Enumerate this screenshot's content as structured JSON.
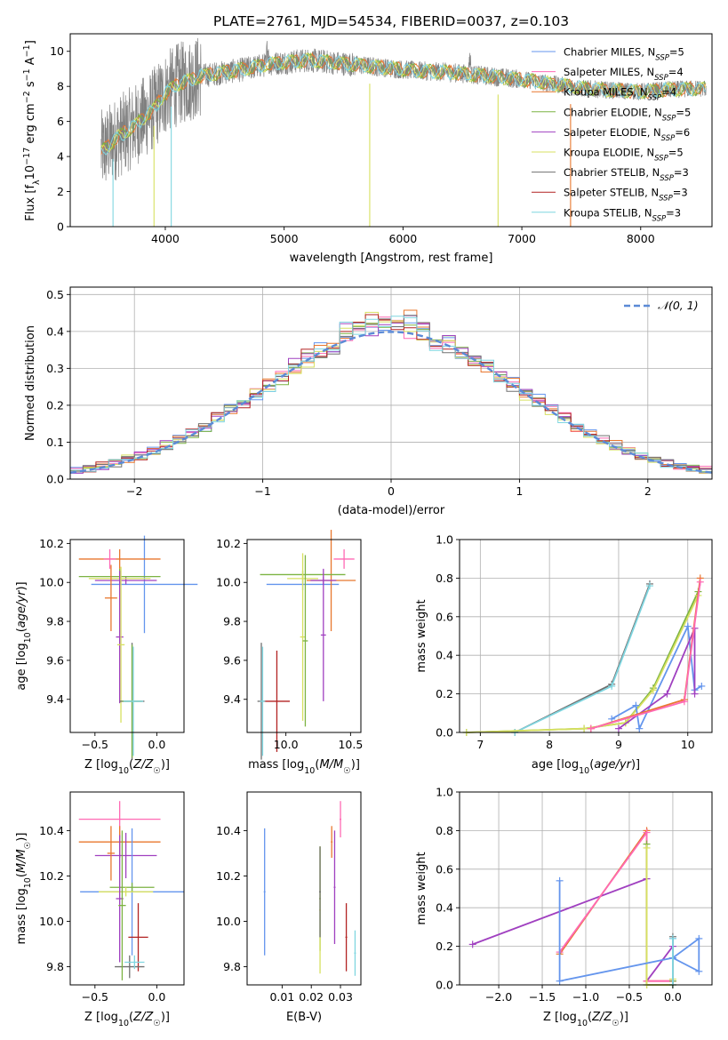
{
  "figure_title": "PLATE=2761, MJD=54534, FIBERID=0037, z=0.103",
  "model_colors": [
    "#6495ed",
    "#ff69b4",
    "#e8772e",
    "#7cb342",
    "#a040c0",
    "#d7e060",
    "#707070",
    "#b22222",
    "#7fd6e0"
  ],
  "chart_data": [
    {
      "id": "spectrum",
      "type": "line",
      "title": "PLATE=2761, MJD=54534, FIBERID=0037, z=0.103",
      "xlabel": "wavelength [Angstrom, rest frame]",
      "ylabel": "Flux [f_λ 10^-17 erg cm^-2 s^-1 A^-1]",
      "xlim": [
        3200,
        8600
      ],
      "ylim": [
        0,
        11
      ],
      "xticks": [
        "4000",
        "5000",
        "6000",
        "7000",
        "8000"
      ],
      "yticks": [
        "0",
        "2",
        "4",
        "6",
        "8",
        "10"
      ],
      "legend_position": "right",
      "legend": [
        {
          "label": "Chabrier MILES, N",
          "sub": "SSP",
          "tail": "=5",
          "color_index": 0
        },
        {
          "label": "Salpeter MILES, N",
          "sub": "SSP",
          "tail": "=4",
          "color_index": 1
        },
        {
          "label": "Kroupa MILES, N",
          "sub": "SSP",
          "tail": "=4",
          "color_index": 2
        },
        {
          "label": "Chabrier ELODIE, N",
          "sub": "SSP",
          "tail": "=5",
          "color_index": 3
        },
        {
          "label": "Salpeter ELODIE, N",
          "sub": "SSP",
          "tail": "=6",
          "color_index": 4
        },
        {
          "label": "Kroupa ELODIE, N",
          "sub": "SSP",
          "tail": "=5",
          "color_index": 5
        },
        {
          "label": "Chabrier STELIB, N",
          "sub": "SSP",
          "tail": "=3",
          "color_index": 6
        },
        {
          "label": "Salpeter STELIB, N",
          "sub": "SSP",
          "tail": "=3",
          "color_index": 7
        },
        {
          "label": "Kroupa STELIB, N",
          "sub": "SSP",
          "tail": "=3",
          "color_index": 8
        }
      ],
      "continuum_anchors": {
        "wavelength": [
          3450,
          3600,
          3750,
          3900,
          4000,
          4100,
          4300,
          4600,
          4900,
          5200,
          5500,
          5800,
          6100,
          6400,
          6700,
          7000,
          7300,
          7500,
          7700,
          8000,
          8200,
          8550
        ],
        "flux": [
          4.2,
          5.1,
          5.8,
          6.7,
          7.6,
          8.1,
          8.6,
          8.9,
          9.3,
          9.5,
          9.3,
          9.1,
          8.9,
          8.8,
          8.6,
          8.4,
          8.1,
          7.9,
          7.8,
          7.7,
          7.8,
          7.9
        ]
      },
      "model_dropouts_wavelength": [
        3560,
        3905,
        4050,
        5720,
        6800,
        7410
      ]
    },
    {
      "id": "residuals",
      "type": "bar",
      "xlabel": "(data-model)/error",
      "ylabel": "Normed distribution",
      "xlim": [
        -2.5,
        2.5
      ],
      "ylim": [
        0,
        0.52
      ],
      "xticks": [
        "−2",
        "−1",
        "0",
        "1",
        "2"
      ],
      "yticks": [
        "0.0",
        "0.1",
        "0.2",
        "0.3",
        "0.4",
        "0.5"
      ],
      "legend": [
        {
          "label": "𝒩(0, 1)",
          "style": "dashed",
          "color": "#5b8ad6"
        }
      ],
      "legend_position": "upper right",
      "bin_width": 0.1,
      "histogram": "normal_density_with_scatter",
      "series_count": 9
    },
    {
      "id": "age_vs_Z",
      "type": "scatter",
      "xlabel": "Z [log10(Z/Z☉)]",
      "ylabel": "age [log10(age/yr)]",
      "xlim": [
        -0.7,
        0.22
      ],
      "ylim": [
        9.23,
        10.22
      ],
      "xticks": [
        "−0.5",
        "0.0"
      ],
      "yticks": [
        "9.4",
        "9.6",
        "9.8",
        "10.0",
        "10.2"
      ],
      "points": [
        {
          "c": 0,
          "x": -0.1,
          "xerr": 0.43,
          "y": 9.99,
          "yerr": 0.25
        },
        {
          "c": 2,
          "x": -0.3,
          "xerr": 0.33,
          "y": 10.12,
          "yerr": 0.05
        },
        {
          "c": 4,
          "x": -0.25,
          "xerr": 0.25,
          "y": 10.01,
          "yerr": 0.02
        },
        {
          "c": 3,
          "x": -0.3,
          "xerr": 0.33,
          "y": 10.03,
          "yerr": 0.04
        },
        {
          "c": 5,
          "x": -0.3,
          "xerr": 0.25,
          "y": 10.02,
          "yerr": 0.02
        },
        {
          "c": 1,
          "x": -0.38,
          "xerr": 0.05,
          "y": 10.12,
          "yerr": 0.05
        },
        {
          "c": 2,
          "x": -0.37,
          "xerr": 0.05,
          "y": 9.92,
          "yerr": 0.17
        },
        {
          "c": 4,
          "x": -0.3,
          "xerr": 0.03,
          "y": 9.72,
          "yerr": 0.34
        },
        {
          "c": 5,
          "x": -0.29,
          "xerr": 0.03,
          "y": 9.68,
          "yerr": 0.4
        },
        {
          "c": 6,
          "x": -0.2,
          "xerr": 0.1,
          "y": 9.39,
          "yerr": 0.3
        },
        {
          "c": 3,
          "x": -0.2,
          "xerr": 0.08,
          "y": 9.39,
          "yerr": 0.29
        },
        {
          "c": 8,
          "x": -0.19,
          "xerr": 0.08,
          "y": 9.39,
          "yerr": 0.28
        }
      ]
    },
    {
      "id": "age_vs_mass",
      "type": "scatter",
      "xlabel": "mass [log10(M/M☉)]",
      "ylabel": "",
      "xlim": [
        9.7,
        10.58
      ],
      "ylim": [
        9.23,
        10.22
      ],
      "xticks": [
        "10.0",
        "10.5"
      ],
      "yticks": [
        "9.4",
        "9.6",
        "9.8",
        "10.0",
        "10.2"
      ],
      "points": [
        {
          "c": 0,
          "x": 10.13,
          "xerr": 0.28,
          "y": 9.99,
          "yerr": 0.03
        },
        {
          "c": 1,
          "x": 10.45,
          "xerr": 0.08,
          "y": 10.12,
          "yerr": 0.05
        },
        {
          "c": 2,
          "x": 10.35,
          "xerr": 0.19,
          "y": 10.01,
          "yerr": 0.26
        },
        {
          "c": 3,
          "x": 10.13,
          "xerr": 0.33,
          "y": 10.04,
          "yerr": 0.02
        },
        {
          "c": 4,
          "x": 10.29,
          "xerr": 0.1,
          "y": 10.01,
          "yerr": 0.02
        },
        {
          "c": 5,
          "x": 10.13,
          "xerr": 0.12,
          "y": 10.02,
          "yerr": 0.02
        },
        {
          "c": 4,
          "x": 10.29,
          "xerr": 0.02,
          "y": 9.73,
          "yerr": 0.34
        },
        {
          "c": 5,
          "x": 10.13,
          "xerr": 0.02,
          "y": 9.72,
          "yerr": 0.43
        },
        {
          "c": 6,
          "x": 9.81,
          "xerr": 0.03,
          "y": 9.39,
          "yerr": 0.3
        },
        {
          "c": 7,
          "x": 9.93,
          "xerr": 0.1,
          "y": 9.39,
          "yerr": 0.26
        },
        {
          "c": 8,
          "x": 9.82,
          "xerr": 0.02,
          "y": 9.39,
          "yerr": 0.28
        },
        {
          "c": 3,
          "x": 10.15,
          "xerr": 0.02,
          "y": 9.7,
          "yerr": 0.44
        }
      ]
    },
    {
      "id": "weight_vs_age",
      "type": "line",
      "xlabel": "age [log10(age/yr)]",
      "ylabel": "mass weight",
      "xlim": [
        6.7,
        10.35
      ],
      "ylim": [
        0,
        1
      ],
      "xticks": [
        "7",
        "8",
        "9",
        "10"
      ],
      "yticks": [
        "0.0",
        "0.2",
        "0.4",
        "0.6",
        "0.8",
        "1.0"
      ],
      "series": [
        {
          "c": 6,
          "x": [
            7.5,
            8.9,
            9.45
          ],
          "y": [
            0.0,
            0.25,
            0.77
          ]
        },
        {
          "c": 8,
          "x": [
            7.5,
            8.9,
            9.45
          ],
          "y": [
            0.0,
            0.24,
            0.76
          ]
        },
        {
          "c": 3,
          "x": [
            6.8,
            8.5,
            9.1,
            9.5,
            10.15
          ],
          "y": [
            0.0,
            0.02,
            0.05,
            0.23,
            0.73
          ]
        },
        {
          "c": 5,
          "x": [
            6.8,
            8.5,
            9.1,
            9.5,
            10.15
          ],
          "y": [
            0.0,
            0.02,
            0.05,
            0.22,
            0.71
          ]
        },
        {
          "c": 0,
          "x": [
            8.9,
            9.25,
            9.3,
            10.0,
            10.1,
            10.2
          ],
          "y": [
            0.07,
            0.14,
            0.02,
            0.55,
            0.22,
            0.24
          ]
        },
        {
          "c": 4,
          "x": [
            9.0,
            9.7,
            10.1,
            10.1
          ],
          "y": [
            0.02,
            0.2,
            0.54,
            0.2
          ]
        },
        {
          "c": 2,
          "x": [
            8.6,
            9.95,
            10.18
          ],
          "y": [
            0.02,
            0.17,
            0.8
          ]
        },
        {
          "c": 1,
          "x": [
            8.6,
            9.95,
            10.18
          ],
          "y": [
            0.02,
            0.16,
            0.78
          ]
        }
      ]
    },
    {
      "id": "mass_vs_Z",
      "type": "scatter",
      "xlabel": "Z [log10(Z/Z☉)]",
      "ylabel": "mass [log10(M/M☉)]",
      "xlim": [
        -0.7,
        0.22
      ],
      "ylim": [
        9.72,
        10.57
      ],
      "xticks": [
        "−0.5",
        "0.0"
      ],
      "yticks": [
        "9.8",
        "10.0",
        "10.2",
        "10.4"
      ],
      "points": [
        {
          "c": 1,
          "x": -0.3,
          "xerr": 0.33,
          "y": 10.45,
          "yerr": 0.08
        },
        {
          "c": 2,
          "x": -0.3,
          "xerr": 0.33,
          "y": 10.35,
          "yerr": 0.07
        },
        {
          "c": 4,
          "x": -0.25,
          "xerr": 0.25,
          "y": 10.29,
          "yerr": 0.1
        },
        {
          "c": 0,
          "x": -0.2,
          "xerr": 0.42,
          "y": 10.13,
          "yerr": 0.28
        },
        {
          "c": 3,
          "x": -0.2,
          "xerr": 0.18,
          "y": 10.15,
          "yerr": 0.02
        },
        {
          "c": 5,
          "x": -0.25,
          "xerr": 0.22,
          "y": 10.13,
          "yerr": 0.02
        },
        {
          "c": 7,
          "x": -0.15,
          "xerr": 0.08,
          "y": 9.93,
          "yerr": 0.15
        },
        {
          "c": 6,
          "x": -0.22,
          "xerr": 0.12,
          "y": 9.8,
          "yerr": 0.05
        },
        {
          "c": 8,
          "x": -0.18,
          "xerr": 0.08,
          "y": 9.82,
          "yerr": 0.03
        },
        {
          "c": 4,
          "x": -0.3,
          "xerr": 0.03,
          "y": 10.1,
          "yerr": 0.28
        },
        {
          "c": 3,
          "x": -0.28,
          "xerr": 0.03,
          "y": 10.07,
          "yerr": 0.33
        },
        {
          "c": 2,
          "x": -0.37,
          "xerr": 0.03,
          "y": 10.3,
          "yerr": 0.12
        }
      ]
    },
    {
      "id": "mass_vs_ebv",
      "type": "scatter",
      "xlabel": "E(B-V)",
      "ylabel": "",
      "xlim": [
        -0.002,
        0.037
      ],
      "ylim": [
        9.72,
        10.57
      ],
      "xticks": [
        "0.01",
        "0.02",
        "0.03"
      ],
      "yticks": [
        "9.8",
        "10.0",
        "10.2",
        "10.4"
      ],
      "points": [
        {
          "c": 0,
          "x": 0.004,
          "xerr": 0.0003,
          "y": 10.13,
          "yerr": 0.28
        },
        {
          "c": 1,
          "x": 0.03,
          "xerr": 0.0003,
          "y": 10.45,
          "yerr": 0.08
        },
        {
          "c": 2,
          "x": 0.027,
          "xerr": 0.0003,
          "y": 10.35,
          "yerr": 0.07
        },
        {
          "c": 3,
          "x": 0.023,
          "xerr": 0.0003,
          "y": 10.1,
          "yerr": 0.23
        },
        {
          "c": 4,
          "x": 0.028,
          "xerr": 0.0003,
          "y": 10.15,
          "yerr": 0.25
        },
        {
          "c": 5,
          "x": 0.023,
          "xerr": 0.0003,
          "y": 10.05,
          "yerr": 0.28
        },
        {
          "c": 6,
          "x": 0.023,
          "xerr": 0.0003,
          "y": 10.13,
          "yerr": 0.2
        },
        {
          "c": 7,
          "x": 0.032,
          "xerr": 0.0003,
          "y": 9.93,
          "yerr": 0.15
        },
        {
          "c": 8,
          "x": 0.035,
          "xerr": 0.0003,
          "y": 9.86,
          "yerr": 0.1
        }
      ]
    },
    {
      "id": "weight_vs_Z",
      "type": "line",
      "xlabel": "Z [log10(Z/Z☉)]",
      "ylabel": "mass weight",
      "xlim": [
        -2.45,
        0.45
      ],
      "ylim": [
        0,
        1
      ],
      "xticks": [
        "−2.0",
        "−1.5",
        "−1.0",
        "−0.5",
        "0.0"
      ],
      "yticks": [
        "0.0",
        "0.2",
        "0.4",
        "0.6",
        "0.8",
        "1.0"
      ],
      "series": [
        {
          "c": 4,
          "x": [
            -2.3,
            -0.3
          ],
          "y": [
            0.21,
            0.55
          ]
        },
        {
          "c": 4,
          "x": [
            -0.3,
            0.0
          ],
          "y": [
            0.02,
            0.2
          ]
        },
        {
          "c": 2,
          "x": [
            -1.3,
            -0.3,
            -0.3,
            0.0
          ],
          "y": [
            0.16,
            0.8,
            0.02,
            0.02
          ]
        },
        {
          "c": 1,
          "x": [
            -1.3,
            -0.3,
            -0.3,
            0.0
          ],
          "y": [
            0.17,
            0.79,
            0.02,
            0.02
          ]
        },
        {
          "c": 3,
          "x": [
            -0.3,
            -0.3,
            0.0,
            0.0
          ],
          "y": [
            0.73,
            0.0,
            0.0,
            0.02
          ]
        },
        {
          "c": 5,
          "x": [
            -0.3,
            -0.3,
            0.0,
            0.0
          ],
          "y": [
            0.71,
            0.0,
            0.0,
            0.03
          ]
        },
        {
          "c": 0,
          "x": [
            -1.3,
            -1.3,
            0.0,
            0.3,
            0.3,
            0.0,
            0.0
          ],
          "y": [
            0.54,
            0.02,
            0.14,
            0.07,
            0.24,
            0.14,
            0.24
          ]
        },
        {
          "c": 6,
          "x": [
            0.0,
            0.0
          ],
          "y": [
            0.0,
            0.25
          ]
        },
        {
          "c": 8,
          "x": [
            0.0,
            0.0
          ],
          "y": [
            0.0,
            0.24
          ]
        }
      ]
    }
  ]
}
